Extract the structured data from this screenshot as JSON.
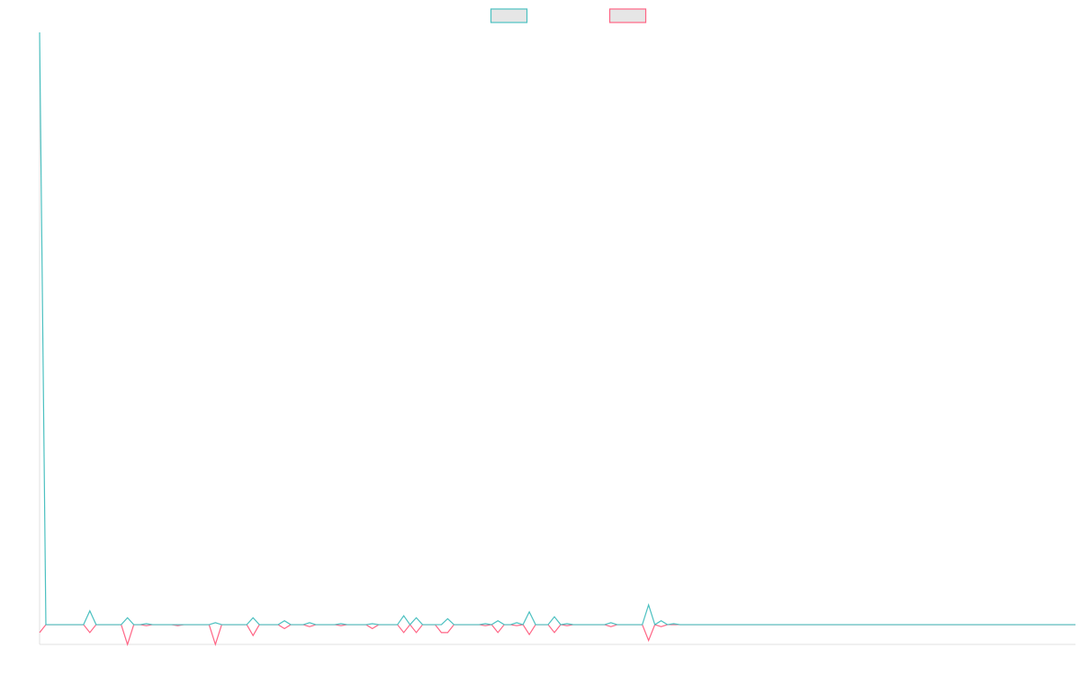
{
  "chart_data": {
    "type": "line",
    "categories": [
      null,
      null,
      null,
      null,
      null,
      null,
      null,
      null,
      null,
      null,
      null,
      null,
      null,
      null,
      null,
      null,
      null,
      null,
      null,
      null,
      null,
      null,
      null,
      null,
      null,
      null,
      null,
      null,
      null,
      null,
      null,
      null,
      null,
      null,
      null,
      null,
      null,
      null,
      null,
      null,
      null,
      null,
      null,
      null,
      null,
      null,
      null,
      null,
      null,
      null,
      null,
      null,
      null,
      null,
      null,
      null,
      null,
      null,
      null,
      null,
      null,
      null,
      null,
      null,
      null,
      null,
      null,
      null,
      null,
      null,
      null,
      null,
      null,
      null,
      null,
      null,
      null,
      null,
      null,
      null,
      null,
      null,
      null,
      null,
      null,
      null,
      null,
      null,
      null,
      null,
      null,
      null,
      null,
      null,
      null,
      null,
      null,
      null,
      null,
      null,
      null,
      null,
      null,
      null,
      null,
      null,
      null,
      null,
      null,
      null,
      null,
      null,
      null,
      null,
      null,
      null,
      null,
      null,
      null,
      null,
      null,
      null,
      null,
      null,
      null,
      null,
      null,
      null,
      null,
      null,
      null,
      null,
      null,
      null,
      null,
      null,
      null,
      null,
      null,
      null,
      null,
      null,
      null,
      null,
      null,
      null,
      null,
      null,
      null,
      null,
      null,
      null,
      null,
      null,
      null,
      null,
      null,
      null,
      null,
      null,
      null,
      null,
      null,
      null,
      null,
      null
    ],
    "series": [
      {
        "color": "#4bc0c0",
        "values": [
          30,
          0,
          0,
          0,
          0,
          0,
          0,
          0,
          0.7,
          0,
          0,
          0,
          0,
          0,
          0.35,
          0,
          0,
          0.05,
          0,
          0,
          0,
          0,
          0,
          0,
          0,
          0,
          0,
          0,
          0.1,
          0,
          0,
          0,
          0,
          0,
          0.35,
          0,
          0,
          0,
          0,
          0.2,
          0,
          0,
          0,
          0.1,
          0,
          0,
          0,
          0,
          0.05,
          0,
          0,
          0,
          0,
          0.05,
          0,
          0,
          0,
          0,
          0.45,
          0,
          0.35,
          0,
          0,
          0,
          0,
          0.3,
          0,
          0,
          0,
          0,
          0,
          0.05,
          0,
          0.2,
          0,
          0,
          0.1,
          0,
          0.65,
          0,
          0,
          0,
          0.4,
          0,
          0.05,
          0,
          0,
          0,
          0,
          0,
          0,
          0.1,
          0,
          0,
          0,
          0,
          0,
          1,
          0,
          0.2,
          0,
          0.05,
          0,
          0,
          0,
          0,
          0,
          0,
          0,
          0,
          0,
          0,
          0,
          0,
          0,
          0,
          0,
          0,
          0,
          0,
          0,
          0,
          0,
          0,
          0,
          0,
          0,
          0,
          0,
          0,
          0,
          0,
          0,
          0,
          0,
          0,
          0,
          0,
          0,
          0,
          0,
          0,
          0,
          0,
          0,
          0,
          0,
          0,
          0,
          0,
          0,
          0,
          0,
          0,
          0,
          0,
          0,
          0,
          0,
          0,
          0,
          0,
          0,
          0,
          0,
          0
        ]
      },
      {
        "color": "#ff6384",
        "values": [
          -0.4,
          0,
          0,
          0,
          0,
          0,
          0,
          0,
          -0.4,
          0,
          0,
          0,
          0,
          0,
          -1,
          0,
          0,
          -0.05,
          0,
          0,
          0,
          0,
          -0.05,
          0,
          0,
          0,
          0,
          0,
          -1,
          0,
          0,
          0,
          0,
          0,
          -0.55,
          0,
          0,
          0,
          0,
          -0.2,
          0,
          0,
          0,
          -0.1,
          0,
          0,
          0,
          0,
          -0.05,
          0,
          0,
          0,
          0,
          -0.2,
          0,
          0,
          0,
          0,
          -0.4,
          0,
          -0.4,
          0,
          0,
          0,
          -0.4,
          -0.4,
          0,
          0,
          0,
          0,
          0,
          -0.05,
          0,
          -0.4,
          0,
          0,
          -0.05,
          0,
          -0.5,
          0,
          0,
          0,
          -0.4,
          0,
          -0.05,
          0,
          0,
          0,
          0,
          0,
          0,
          -0.1,
          0,
          0,
          0,
          0,
          0,
          -0.8,
          0,
          -0.1,
          0,
          0,
          0,
          0,
          0,
          0,
          0,
          0,
          0,
          0,
          0,
          0,
          0,
          0,
          0,
          0,
          0,
          0,
          0,
          0,
          0,
          0,
          0,
          0,
          0,
          0,
          0,
          0,
          0,
          0,
          0,
          0,
          0,
          0,
          0,
          0,
          0,
          0,
          0,
          0,
          0,
          0,
          0,
          0,
          0,
          0,
          0,
          0,
          0,
          0,
          0,
          0,
          0,
          0,
          0,
          0,
          0,
          0,
          0,
          0,
          0,
          0,
          0,
          0,
          0,
          0
        ]
      }
    ],
    "ylim": [
      -1,
      30
    ],
    "grid": false,
    "legend": "top"
  }
}
